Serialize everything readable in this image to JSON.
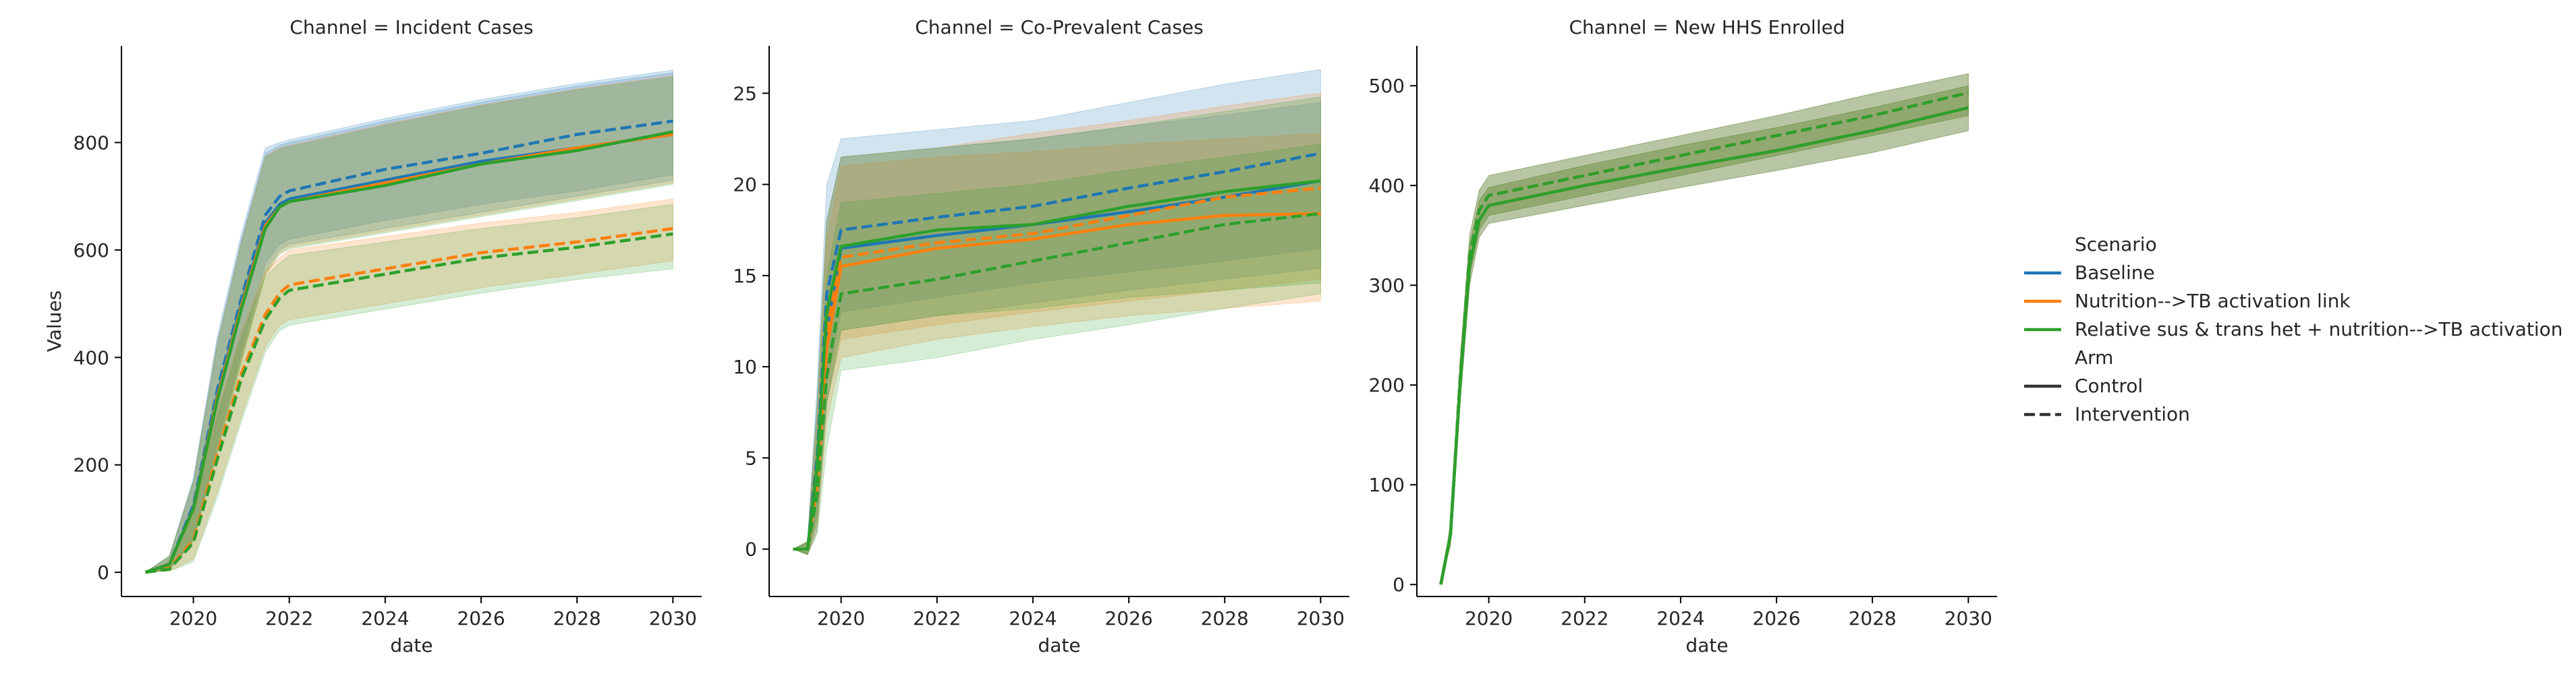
{
  "chart_data": [
    {
      "type": "line",
      "title": "Channel = Incident Cases",
      "xlabel": "date",
      "ylabel": "Values",
      "xlim": [
        2018.5,
        2030.6
      ],
      "ylim": [
        -45,
        980
      ],
      "x_ticks": [
        2020,
        2022,
        2024,
        2026,
        2028,
        2030
      ],
      "y_ticks": [
        0,
        200,
        400,
        600,
        800
      ],
      "series": [
        {
          "name": "Baseline",
          "arm": "Control",
          "x": [
            2019.0,
            2019.5,
            2020.0,
            2020.5,
            2021.0,
            2021.5,
            2021.8,
            2022.0,
            2024,
            2026,
            2028,
            2030
          ],
          "y": [
            0,
            15,
            120,
            330,
            500,
            650,
            685,
            695,
            730,
            765,
            790,
            815
          ],
          "lower": [
            0,
            5,
            60,
            230,
            400,
            560,
            600,
            610,
            640,
            670,
            700,
            730
          ],
          "upper": [
            0,
            30,
            170,
            430,
            620,
            780,
            795,
            800,
            840,
            875,
            905,
            930
          ]
        },
        {
          "name": "Baseline",
          "arm": "Intervention",
          "x": [
            2019.0,
            2019.5,
            2020.0,
            2020.5,
            2021.0,
            2021.5,
            2021.8,
            2022.0,
            2024,
            2026,
            2028,
            2030
          ],
          "y": [
            0,
            15,
            125,
            340,
            510,
            665,
            700,
            710,
            750,
            780,
            815,
            840
          ],
          "lower": [
            0,
            5,
            65,
            240,
            410,
            575,
            610,
            620,
            655,
            685,
            710,
            740
          ],
          "upper": [
            0,
            30,
            175,
            440,
            630,
            790,
            800,
            805,
            845,
            880,
            910,
            935
          ]
        },
        {
          "name": "Nutrition-->TB activation link",
          "arm": "Control",
          "x": [
            2019.0,
            2019.5,
            2020.0,
            2020.5,
            2021.0,
            2021.5,
            2021.8,
            2022.0,
            2024,
            2026,
            2028,
            2030
          ],
          "y": [
            0,
            15,
            118,
            325,
            495,
            645,
            680,
            690,
            725,
            760,
            790,
            815
          ],
          "lower": [
            0,
            5,
            58,
            225,
            395,
            555,
            595,
            605,
            635,
            665,
            695,
            725
          ],
          "upper": [
            0,
            30,
            168,
            425,
            615,
            775,
            790,
            795,
            835,
            870,
            900,
            925
          ]
        },
        {
          "name": "Nutrition-->TB activation link",
          "arm": "Intervention",
          "x": [
            2019.0,
            2019.5,
            2020.0,
            2020.5,
            2021.0,
            2021.5,
            2021.8,
            2022.0,
            2024,
            2026,
            2028,
            2030
          ],
          "y": [
            0,
            8,
            60,
            220,
            370,
            480,
            520,
            535,
            565,
            595,
            615,
            640
          ],
          "lower": [
            0,
            2,
            25,
            150,
            290,
            420,
            460,
            470,
            500,
            530,
            555,
            580
          ],
          "upper": [
            0,
            20,
            110,
            300,
            450,
            560,
            585,
            600,
            625,
            650,
            670,
            695
          ]
        },
        {
          "name": "Relative sus & trans het + nutrition-->TB activation",
          "arm": "Control",
          "x": [
            2019.0,
            2019.5,
            2020.0,
            2020.5,
            2021.0,
            2021.5,
            2021.8,
            2022.0,
            2024,
            2026,
            2028,
            2030
          ],
          "y": [
            0,
            15,
            118,
            320,
            490,
            640,
            680,
            690,
            720,
            760,
            785,
            820
          ],
          "lower": [
            0,
            5,
            58,
            222,
            392,
            552,
            592,
            602,
            632,
            662,
            692,
            722
          ],
          "upper": [
            0,
            30,
            168,
            422,
            612,
            772,
            788,
            792,
            832,
            868,
            898,
            922
          ]
        },
        {
          "name": "Relative sus & trans het + nutrition-->TB activation",
          "arm": "Intervention",
          "x": [
            2019.0,
            2019.5,
            2020.0,
            2020.5,
            2021.0,
            2021.5,
            2021.8,
            2022.0,
            2024,
            2026,
            2028,
            2030
          ],
          "y": [
            0,
            6,
            55,
            210,
            360,
            470,
            510,
            525,
            555,
            585,
            605,
            630
          ],
          "lower": [
            0,
            2,
            20,
            140,
            280,
            410,
            450,
            460,
            490,
            520,
            545,
            565
          ],
          "upper": [
            0,
            18,
            105,
            290,
            440,
            550,
            575,
            590,
            615,
            640,
            660,
            685
          ]
        }
      ]
    },
    {
      "type": "line",
      "title": "Channel = Co-Prevalent Cases",
      "xlabel": "date",
      "ylabel": "",
      "xlim": [
        2018.5,
        2030.6
      ],
      "ylim": [
        -2.6,
        27.6
      ],
      "x_ticks": [
        2020,
        2022,
        2024,
        2026,
        2028,
        2030
      ],
      "y_ticks": [
        0,
        5,
        10,
        15,
        20,
        25
      ],
      "series": [
        {
          "name": "Baseline",
          "arm": "Control",
          "x": [
            2019.0,
            2019.3,
            2019.5,
            2019.7,
            2020.0,
            2022,
            2024,
            2026,
            2028,
            2030
          ],
          "y": [
            0,
            0,
            4,
            12,
            16.5,
            17.2,
            17.8,
            18.5,
            19.3,
            20.2
          ],
          "lower": [
            0,
            -0.3,
            1,
            8,
            12,
            12.8,
            13.5,
            14.2,
            14.8,
            15.4
          ],
          "upper": [
            0,
            0.4,
            8,
            18,
            21.5,
            22,
            22.5,
            23.2,
            23.8,
            24.5
          ]
        },
        {
          "name": "Baseline",
          "arm": "Intervention",
          "x": [
            2019.0,
            2019.3,
            2019.5,
            2019.7,
            2020.0,
            2022,
            2024,
            2026,
            2028,
            2030
          ],
          "y": [
            0,
            0,
            5,
            14,
            17.5,
            18.2,
            18.8,
            19.8,
            20.7,
            21.7
          ],
          "lower": [
            0,
            -0.3,
            2,
            9,
            13,
            13.8,
            14.6,
            15.2,
            15.8,
            16.5
          ],
          "upper": [
            0,
            0.4,
            9,
            20,
            22.5,
            23,
            23.5,
            24.5,
            25.5,
            26.3
          ]
        },
        {
          "name": "Nutrition-->TB activation link",
          "arm": "Control",
          "x": [
            2019.0,
            2019.3,
            2019.5,
            2019.7,
            2020.0,
            2022,
            2024,
            2026,
            2028,
            2030
          ],
          "y": [
            0,
            0,
            3.5,
            11,
            15.5,
            16.5,
            17,
            17.8,
            18.3,
            18.4
          ],
          "lower": [
            0,
            -0.3,
            1,
            7,
            10.5,
            11.5,
            12.2,
            12.8,
            13.2,
            13.6
          ],
          "upper": [
            0,
            0.4,
            7,
            17,
            21,
            21.5,
            21.8,
            22.2,
            22.5,
            22.8
          ]
        },
        {
          "name": "Nutrition-->TB activation link",
          "arm": "Intervention",
          "x": [
            2019.0,
            2019.3,
            2019.5,
            2019.7,
            2020.0,
            2022,
            2024,
            2026,
            2028,
            2030
          ],
          "y": [
            0,
            0,
            4,
            12,
            16,
            16.8,
            17.3,
            18.3,
            19.3,
            19.8
          ],
          "lower": [
            0,
            -0.3,
            1.5,
            8,
            11.5,
            12.3,
            13,
            13.6,
            14.2,
            14.8
          ],
          "upper": [
            0,
            0.4,
            7.5,
            18,
            21.5,
            22,
            22.8,
            23.5,
            24.3,
            25
          ]
        },
        {
          "name": "Relative sus & trans het + nutrition-->TB activation",
          "arm": "Control",
          "x": [
            2019.0,
            2019.3,
            2019.5,
            2019.7,
            2020.0,
            2022,
            2024,
            2026,
            2028,
            2030
          ],
          "y": [
            0,
            0,
            4.5,
            13,
            16.6,
            17.5,
            17.8,
            18.8,
            19.6,
            20.2
          ],
          "lower": [
            0,
            -0.3,
            1.5,
            8,
            12,
            12.8,
            13.2,
            13.8,
            14.2,
            14.6
          ],
          "upper": [
            0,
            0.4,
            8,
            18,
            21.5,
            22,
            22.5,
            23.2,
            24,
            24.8
          ]
        },
        {
          "name": "Relative sus & trans het + nutrition-->TB activation",
          "arm": "Intervention",
          "x": [
            2019.0,
            2019.3,
            2019.5,
            2019.7,
            2020.0,
            2022,
            2024,
            2026,
            2028,
            2030
          ],
          "y": [
            0,
            0,
            3,
            9.5,
            14,
            14.8,
            15.8,
            16.8,
            17.8,
            18.4
          ],
          "lower": [
            0,
            -0.3,
            0.8,
            5.5,
            9.8,
            10.5,
            11.5,
            12.3,
            13.2,
            14
          ],
          "upper": [
            0,
            0.4,
            6,
            15,
            19,
            19.5,
            20,
            20.8,
            21.5,
            22.2
          ]
        }
      ]
    },
    {
      "type": "line",
      "title": "Channel = New HHS Enrolled",
      "xlabel": "date",
      "ylabel": "",
      "xlim": [
        2018.5,
        2030.6
      ],
      "ylim": [
        -12,
        540
      ],
      "x_ticks": [
        2020,
        2022,
        2024,
        2026,
        2028,
        2030
      ],
      "y_ticks": [
        0,
        100,
        200,
        300,
        400,
        500
      ],
      "series": [
        {
          "name": "Baseline",
          "arm": "Control",
          "x": [
            2019.0,
            2019.2,
            2019.4,
            2019.6,
            2019.8,
            2020.0,
            2022,
            2024,
            2026,
            2028,
            2030
          ],
          "y": [
            0,
            50,
            200,
            320,
            365,
            380,
            400,
            418,
            435,
            455,
            478
          ],
          "lower": [
            0,
            40,
            180,
            300,
            348,
            362,
            380,
            398,
            415,
            433,
            455
          ],
          "upper": [
            0,
            60,
            220,
            340,
            385,
            398,
            420,
            440,
            458,
            478,
            500
          ]
        },
        {
          "name": "Baseline",
          "arm": "Intervention",
          "x": [
            2019.0,
            2019.2,
            2019.4,
            2019.6,
            2019.8,
            2020.0,
            2022,
            2024,
            2026,
            2028,
            2030
          ],
          "y": [
            0,
            50,
            205,
            330,
            375,
            390,
            410,
            430,
            450,
            470,
            493
          ],
          "lower": [
            0,
            40,
            185,
            310,
            355,
            370,
            390,
            410,
            430,
            450,
            470
          ],
          "upper": [
            0,
            60,
            225,
            350,
            395,
            410,
            430,
            450,
            470,
            492,
            512
          ]
        },
        {
          "name": "Nutrition-->TB activation link",
          "arm": "Control",
          "x": [
            2019.0,
            2019.2,
            2019.4,
            2019.6,
            2019.8,
            2020.0,
            2022,
            2024,
            2026,
            2028,
            2030
          ],
          "y": [
            0,
            50,
            200,
            320,
            365,
            380,
            400,
            418,
            435,
            455,
            478
          ],
          "lower": [
            0,
            40,
            180,
            300,
            348,
            362,
            380,
            398,
            415,
            433,
            455
          ],
          "upper": [
            0,
            60,
            220,
            340,
            385,
            398,
            420,
            440,
            458,
            478,
            500
          ]
        },
        {
          "name": "Nutrition-->TB activation link",
          "arm": "Intervention",
          "x": [
            2019.0,
            2019.2,
            2019.4,
            2019.6,
            2019.8,
            2020.0,
            2022,
            2024,
            2026,
            2028,
            2030
          ],
          "y": [
            0,
            50,
            205,
            330,
            375,
            390,
            410,
            430,
            450,
            470,
            493
          ],
          "lower": [
            0,
            40,
            185,
            310,
            355,
            370,
            390,
            410,
            430,
            450,
            470
          ],
          "upper": [
            0,
            60,
            225,
            350,
            395,
            410,
            430,
            450,
            470,
            492,
            512
          ]
        },
        {
          "name": "Relative sus & trans het + nutrition-->TB activation",
          "arm": "Control",
          "x": [
            2019.0,
            2019.2,
            2019.4,
            2019.6,
            2019.8,
            2020.0,
            2022,
            2024,
            2026,
            2028,
            2030
          ],
          "y": [
            0,
            50,
            200,
            320,
            365,
            380,
            400,
            418,
            435,
            455,
            478
          ],
          "lower": [
            0,
            40,
            180,
            300,
            348,
            362,
            380,
            398,
            415,
            433,
            455
          ],
          "upper": [
            0,
            60,
            220,
            340,
            385,
            398,
            420,
            440,
            458,
            478,
            500
          ]
        },
        {
          "name": "Relative sus & trans het + nutrition-->TB activation",
          "arm": "Intervention",
          "x": [
            2019.0,
            2019.2,
            2019.4,
            2019.6,
            2019.8,
            2020.0,
            2022,
            2024,
            2026,
            2028,
            2030
          ],
          "y": [
            0,
            50,
            205,
            330,
            375,
            390,
            410,
            430,
            450,
            470,
            493
          ],
          "lower": [
            0,
            40,
            185,
            310,
            355,
            370,
            390,
            410,
            430,
            450,
            470
          ],
          "upper": [
            0,
            60,
            225,
            350,
            395,
            410,
            430,
            450,
            470,
            492,
            512
          ]
        }
      ]
    }
  ],
  "legend": {
    "scenario_title": "Scenario",
    "scenarios": [
      {
        "label": "Baseline",
        "color": "#1f77b4"
      },
      {
        "label": "Nutrition-->TB activation link",
        "color": "#ff7f0e"
      },
      {
        "label": "Relative sus & trans het + nutrition-->TB activation",
        "color": "#2ca02c"
      }
    ],
    "arm_title": "Arm",
    "arms": [
      {
        "label": "Control",
        "style": "solid"
      },
      {
        "label": "Intervention",
        "style": "dashed"
      }
    ],
    "placement": "right"
  }
}
